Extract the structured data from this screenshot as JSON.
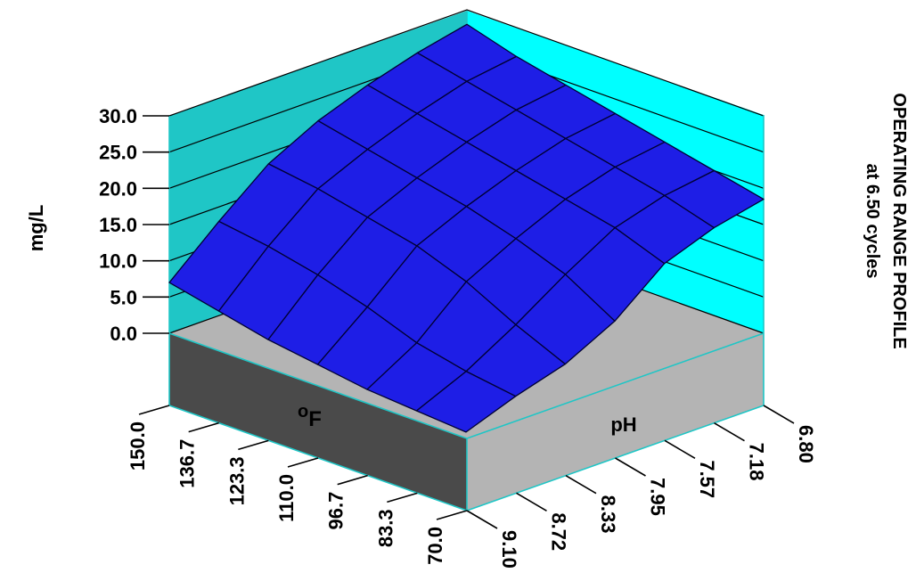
{
  "chart_data": {
    "type": "surface3d",
    "title": "OPERATING RANGE PROFILE",
    "subtitle": "at  6.50 cycles",
    "zlabel": "mg/L",
    "xlabel": "oF",
    "ylabel": "pH",
    "zlim": [
      0,
      30
    ],
    "z_ticks": [
      "0.0",
      "5.0",
      "10.0",
      "15.0",
      "20.0",
      "25.0",
      "30.0"
    ],
    "temperature_ticks": [
      "150.0",
      "136.7",
      "123.3",
      "110.0",
      "96.7",
      "83.3",
      "70.0"
    ],
    "ph_ticks": [
      "6.80",
      "7.18",
      "7.57",
      "7.95",
      "8.33",
      "8.72",
      "9.10"
    ],
    "temperature_values": [
      150.0,
      136.7,
      123.3,
      110.0,
      96.7,
      83.3,
      70.0
    ],
    "ph_values": [
      6.8,
      7.18,
      7.57,
      7.95,
      8.33,
      8.72,
      9.1
    ],
    "z_values": [
      [
        28.0,
        26.0,
        24.5,
        23.0,
        21.5,
        20.0,
        18.5
      ],
      [
        26.5,
        25.0,
        23.5,
        22.0,
        20.5,
        19.0,
        17.0
      ],
      [
        24.5,
        23.0,
        21.5,
        20.0,
        18.5,
        17.0,
        14.5
      ],
      [
        22.0,
        20.5,
        19.0,
        17.5,
        15.5,
        13.0,
        9.0
      ],
      [
        18.5,
        17.5,
        16.0,
        14.5,
        12.0,
        8.5,
        5.5
      ],
      [
        13.0,
        12.0,
        10.5,
        8.5,
        6.0,
        4.5,
        3.5
      ],
      [
        7.0,
        5.5,
        4.0,
        3.0,
        2.0,
        1.5,
        1.0
      ]
    ],
    "grid": true,
    "colors": {
      "surface": "#1e1ee6",
      "surface_lines": "#000033",
      "back_wall_left": "#1fc6c6",
      "back_wall_right": "#00ffff",
      "floor": "#b4b4b4",
      "front_left_face": "#4a4a4a",
      "front_right_face": "#b4b4b4",
      "edges": "#1fc6c6"
    }
  }
}
